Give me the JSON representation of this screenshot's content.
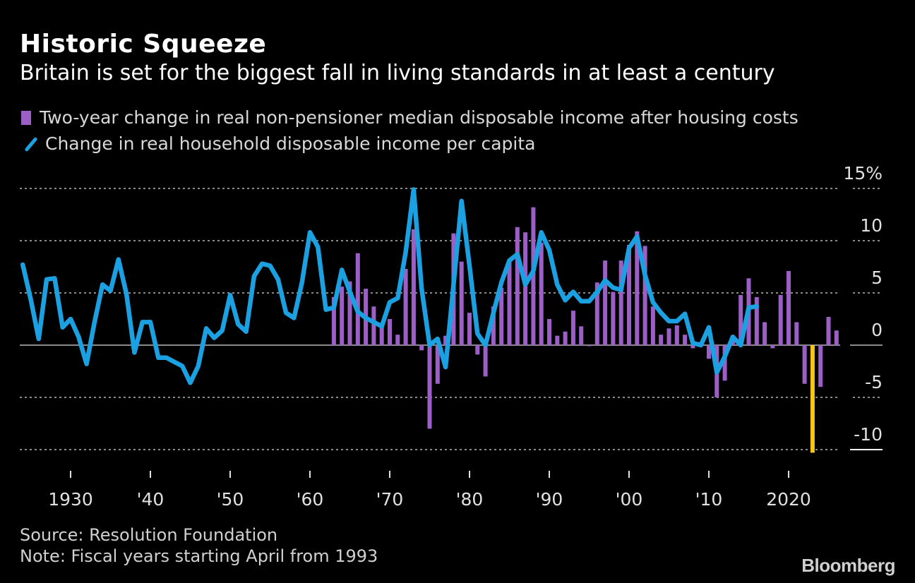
{
  "header": {
    "title": "Historic Squeeze",
    "subtitle": "Britain is set for the biggest fall in living standards in at least a century"
  },
  "footer": {
    "source": "Source: Resolution Foundation",
    "note": "Note: Fiscal years starting April from 1993",
    "logo": "Bloomberg"
  },
  "colors": {
    "background": "#000000",
    "bars": "#9b5fc6",
    "highlight_bar": "#f5c518",
    "line": "#1ba1e2"
  },
  "chart_data": {
    "type": "bar+line",
    "title": "Historic Squeeze",
    "grid": true,
    "legend_placement": "top-left",
    "ylim": [
      -10,
      15
    ],
    "y_ticks": [
      "15%",
      "10",
      "5",
      "0",
      "-5",
      "-10"
    ],
    "y_tick_values": [
      15,
      10,
      5,
      0,
      -5,
      -10
    ],
    "x_ticks": [
      "1930",
      "'40",
      "'50",
      "'60",
      "'70",
      "'80",
      "'90",
      "'00",
      "'10",
      "2020"
    ],
    "x_tick_values": [
      1930,
      1940,
      1950,
      1960,
      1970,
      1980,
      1990,
      2000,
      2010,
      2020
    ],
    "xlim": [
      1924,
      2026
    ],
    "series": [
      {
        "name": "Two-year change in real non-pensioner median disposable income after housing costs",
        "kind": "bar",
        "highlight": 2023,
        "x": [
          1963,
          1964,
          1965,
          1966,
          1967,
          1968,
          1969,
          1970,
          1971,
          1972,
          1973,
          1974,
          1975,
          1976,
          1977,
          1978,
          1979,
          1980,
          1981,
          1982,
          1983,
          1984,
          1985,
          1986,
          1987,
          1988,
          1989,
          1990,
          1991,
          1992,
          1993,
          1994,
          1995,
          1996,
          1997,
          1998,
          1999,
          2000,
          2001,
          2002,
          2003,
          2004,
          2005,
          2006,
          2007,
          2008,
          2009,
          2010,
          2011,
          2012,
          2013,
          2014,
          2015,
          2016,
          2017,
          2018,
          2019,
          2020,
          2021,
          2022,
          2023,
          2024,
          2025,
          2026
        ],
        "values": [
          4.6,
          5.6,
          6.1,
          8.8,
          5.4,
          3.7,
          2.0,
          2.5,
          1.0,
          7.3,
          11.1,
          -0.5,
          -8.0,
          -3.7,
          0.9,
          10.7,
          8.0,
          3.1,
          -0.9,
          -3.0,
          3.7,
          5.5,
          8.0,
          11.3,
          10.8,
          13.2,
          9.8,
          2.5,
          0.9,
          1.3,
          3.3,
          1.8,
          -0.1,
          6.0,
          8.1,
          5.1,
          8.1,
          9.6,
          10.9,
          9.5,
          3.7,
          1.0,
          1.6,
          1.9,
          1.0,
          -0.3,
          0.3,
          -1.3,
          -5.0,
          -3.4,
          0.5,
          4.8,
          6.4,
          4.6,
          2.2,
          -0.3,
          4.8,
          7.1,
          2.2,
          -3.7,
          -10.3,
          -4.0,
          2.7,
          1.4
        ]
      },
      {
        "name": "Change in real household disposable income per capita",
        "kind": "line",
        "x": [
          1924,
          1925,
          1926,
          1927,
          1928,
          1929,
          1930,
          1931,
          1932,
          1933,
          1934,
          1935,
          1936,
          1937,
          1938,
          1939,
          1940,
          1941,
          1942,
          1943,
          1944,
          1945,
          1946,
          1947,
          1948,
          1949,
          1950,
          1951,
          1952,
          1953,
          1954,
          1955,
          1956,
          1957,
          1958,
          1959,
          1960,
          1961,
          1962,
          1963,
          1964,
          1965,
          1966,
          1967,
          1968,
          1969,
          1970,
          1971,
          1972,
          1973,
          1974,
          1975,
          1976,
          1977,
          1978,
          1979,
          1980,
          1981,
          1982,
          1983,
          1984,
          1985,
          1986,
          1987,
          1988,
          1989,
          1990,
          1991,
          1992,
          1993,
          1994,
          1995,
          1996,
          1997,
          1998,
          1999,
          2000,
          2001,
          2002,
          2003,
          2004,
          2005,
          2006,
          2007,
          2008,
          2009,
          2010,
          2011,
          2012,
          2013,
          2014,
          2015,
          2016
        ],
        "values": [
          7.7,
          4.4,
          0.6,
          6.3,
          6.4,
          1.7,
          2.5,
          0.8,
          -1.8,
          2.2,
          5.8,
          5.2,
          8.2,
          4.9,
          -0.7,
          2.2,
          2.2,
          -1.2,
          -1.2,
          -1.6,
          -2.0,
          -3.6,
          -2.0,
          1.6,
          0.7,
          1.4,
          4.8,
          2.0,
          1.3,
          6.6,
          7.8,
          7.6,
          6.3,
          3.1,
          2.6,
          6.0,
          10.8,
          9.4,
          3.4,
          3.6,
          7.2,
          5.1,
          3.2,
          2.6,
          2.2,
          1.8,
          4.1,
          4.5,
          8.9,
          14.9,
          5.4,
          0.0,
          0.6,
          -2.1,
          5.8,
          13.8,
          7.6,
          1.1,
          0.0,
          3.1,
          6.0,
          8.1,
          8.7,
          5.8,
          7.1,
          10.8,
          9.1,
          5.8,
          4.3,
          5.1,
          4.2,
          4.2,
          5.1,
          6.2,
          5.5,
          5.3,
          9.3,
          10.4,
          6.7,
          4.1,
          3.1,
          2.3,
          2.3,
          3.0,
          0.2,
          0.0,
          1.7,
          -2.6,
          -1.1,
          0.8,
          0.0,
          3.6,
          3.7
        ]
      }
    ]
  }
}
